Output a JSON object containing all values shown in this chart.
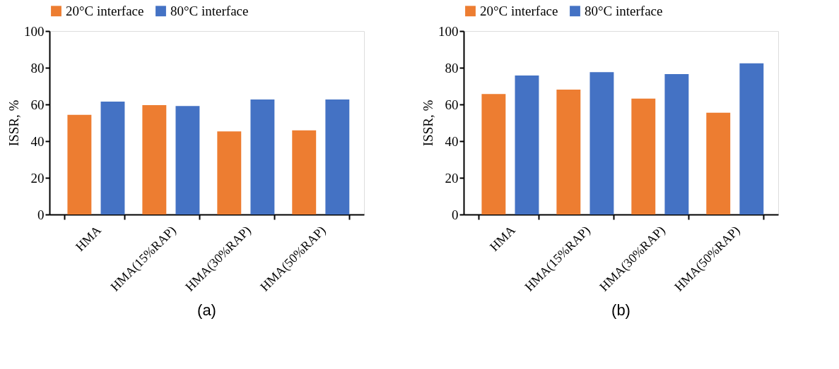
{
  "chart_data": [
    {
      "type": "bar",
      "title": "(a)",
      "ylabel": "ISSR, %",
      "categories": [
        "HMA",
        "HMA(15%RAP)",
        "HMA(30%RAP)",
        "HMA(50%RAP)"
      ],
      "ylim": [
        0,
        100
      ],
      "yticks": [
        0,
        20,
        40,
        60,
        80,
        100
      ],
      "grid": false,
      "legend": "top",
      "series": [
        {
          "name": "20°C interface",
          "color": "#ed7d31",
          "values": [
            54.3,
            59.6,
            45.3,
            45.9
          ]
        },
        {
          "name": "80°C interface",
          "color": "#4472c4",
          "values": [
            61.5,
            59.1,
            62.7,
            62.7
          ]
        }
      ]
    },
    {
      "type": "bar",
      "title": "(b)",
      "ylabel": "ISSR, %",
      "categories": [
        "HMA",
        "HMA(15%RAP)",
        "HMA(30%RAP)",
        "HMA(50%RAP)"
      ],
      "ylim": [
        0,
        100
      ],
      "yticks": [
        0,
        20,
        40,
        60,
        80,
        100
      ],
      "grid": false,
      "legend": "top",
      "series": [
        {
          "name": "20°C interface",
          "color": "#ed7d31",
          "values": [
            65.7,
            68.1,
            63.2,
            55.5
          ]
        },
        {
          "name": "80°C interface",
          "color": "#4472c4",
          "values": [
            75.8,
            77.6,
            76.5,
            82.4
          ]
        }
      ]
    }
  ]
}
